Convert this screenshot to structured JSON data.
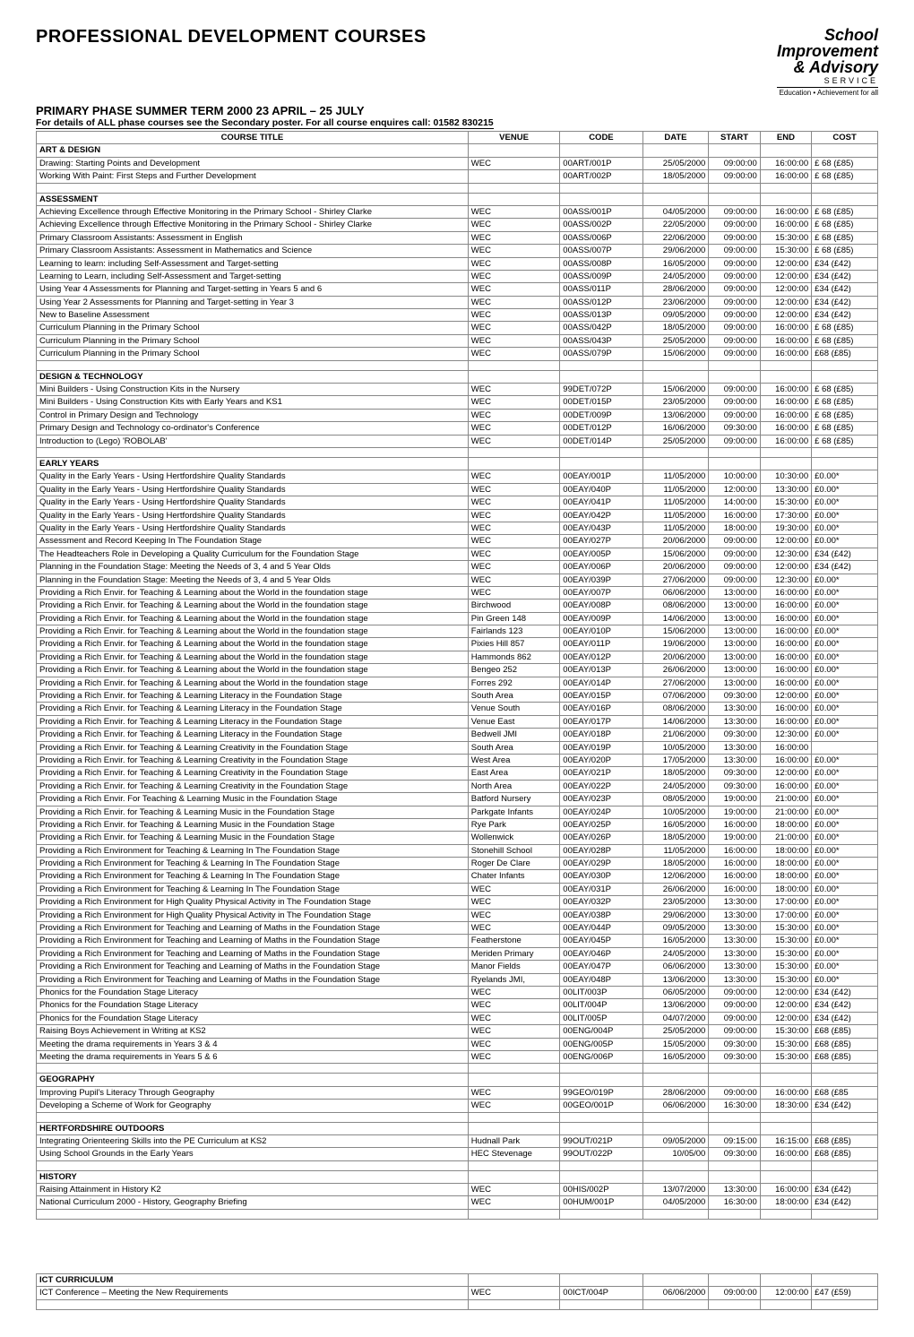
{
  "header": {
    "title": "PROFESSIONAL DEVELOPMENT COURSES",
    "logo": {
      "l1": "School",
      "l2": "Improvement",
      "l3": "& Advisory",
      "l4": "SERVICE",
      "l5": "Education • Achievement for all"
    },
    "subtitle": "PRIMARY PHASE SUMMER TERM 2000  23 APRIL – 25 JULY",
    "subnote": "For details of ALL phase courses see the Secondary poster.  For all course enquires call:  01582 830215"
  },
  "columns": [
    "COURSE TITLE",
    "VENUE",
    "CODE",
    "DATE",
    "START",
    "END",
    "COST"
  ],
  "sections": [
    {
      "name": "ART & DESIGN",
      "rows": [
        [
          "Drawing: Starting Points and Development",
          "WEC",
          "00ART/001P",
          "25/05/2000",
          "09:00:00",
          "16:00:00",
          "£ 68  (£85)"
        ],
        [
          "Working With Paint: First Steps and Further Development",
          "",
          "00ART/002P",
          "18/05/2000",
          "09:00:00",
          "16:00:00",
          "£ 68  (£85)"
        ]
      ]
    },
    {
      "name": "ASSESSMENT",
      "rows": [
        [
          "Achieving Excellence through Effective Monitoring in the Primary School - Shirley Clarke",
          "WEC",
          "00ASS/001P",
          "04/05/2000",
          "09:00:00",
          "16:00:00",
          "£ 68  (£85)"
        ],
        [
          "Achieving Excellence through Effective Monitoring in the Primary School - Shirley Clarke",
          "WEC",
          "00ASS/002P",
          "22/05/2000",
          "09:00:00",
          "16:00:00",
          "£ 68  (£85)"
        ],
        [
          "Primary Classroom Assistants: Assessment in English",
          "WEC",
          "00ASS/006P",
          "22/06/2000",
          "09:00:00",
          "15:30:00",
          "£ 68  (£85)"
        ],
        [
          "Primary Classroom Assistants:  Assessment in Mathematics and Science",
          "WEC",
          "00ASS/007P",
          "29/06/2000",
          "09:00:00",
          "15:30:00",
          "£ 68  (£85)"
        ],
        [
          "Learning to learn: including Self-Assessment and Target-setting",
          "WEC",
          "00ASS/008P",
          "16/05/2000",
          "09:00:00",
          "12:00:00",
          "£34  (£42)"
        ],
        [
          "Learning to Learn, including Self-Assessment and Target-setting",
          "WEC",
          "00ASS/009P",
          "24/05/2000",
          "09:00:00",
          "12:00:00",
          "£34  (£42)"
        ],
        [
          "Using Year 4 Assessments for Planning and Target-setting in Years 5 and 6",
          "WEC",
          "00ASS/011P",
          "28/06/2000",
          "09:00:00",
          "12:00:00",
          "£34  (£42)"
        ],
        [
          "Using Year 2 Assessments for Planning and Target-setting in Year 3",
          "WEC",
          "00ASS/012P",
          "23/06/2000",
          "09:00:00",
          "12:00:00",
          "£34  (£42)"
        ],
        [
          "New to Baseline Assessment",
          "WEC",
          "00ASS/013P",
          "09/05/2000",
          "09:00:00",
          "12:00:00",
          "£34  (£42)"
        ],
        [
          "Curriculum Planning in the Primary School",
          "WEC",
          "00ASS/042P",
          "18/05/2000",
          "09:00:00",
          "16:00:00",
          "£ 68  (£85)"
        ],
        [
          "Curriculum Planning in the Primary School",
          "WEC",
          "00ASS/043P",
          "25/05/2000",
          "09:00:00",
          "16:00:00",
          "£ 68  (£85)"
        ],
        [
          "Curriculum Planning in the Primary School",
          "WEC",
          "00ASS/079P",
          "15/06/2000",
          "09:00:00",
          "16:00:00",
          "£68  (£85)"
        ]
      ]
    },
    {
      "name": "DESIGN & TECHNOLOGY",
      "rows": [
        [
          "Mini Builders - Using Construction Kits in the Nursery",
          "WEC",
          "99DET/072P",
          "15/06/2000",
          "09:00:00",
          "16:00:00",
          "£ 68  (£85)"
        ],
        [
          "Mini Builders - Using Construction Kits with Early Years and KS1",
          "WEC",
          "00DET/015P",
          "23/05/2000",
          "09:00:00",
          "16:00:00",
          "£ 68  (£85)"
        ],
        [
          "Control in Primary Design and Technology",
          "WEC",
          "00DET/009P",
          "13/06/2000",
          "09:00:00",
          "16:00:00",
          "£ 68  (£85)"
        ],
        [
          "Primary Design and Technology co-ordinator's Conference",
          "WEC",
          "00DET/012P",
          "16/06/2000",
          "09:30:00",
          "16:00:00",
          "£ 68  (£85)"
        ],
        [
          "Introduction to (Lego) 'ROBOLAB'",
          "WEC",
          "00DET/014P",
          "25/05/2000",
          "09:00:00",
          "16:00:00",
          "£ 68  (£85)"
        ]
      ]
    },
    {
      "name": "EARLY YEARS",
      "rows": [
        [
          "Quality in the Early Years - Using Hertfordshire Quality Standards",
          "WEC",
          "00EAY/001P",
          "11/05/2000",
          "10:00:00",
          "10:30:00",
          "£0.00*"
        ],
        [
          "Quality in the Early Years - Using Hertfordshire Quality Standards",
          "WEC",
          "00EAY/040P",
          "11/05/2000",
          "12:00:00",
          "13:30:00",
          "£0.00*"
        ],
        [
          "Quality in the Early Years - Using Hertfordshire Quality Standards",
          "WEC",
          "00EAY/041P",
          "11/05/2000",
          "14:00:00",
          "15:30:00",
          "£0.00*"
        ],
        [
          "Quality in the Early Years - Using Hertfordshire Quality Standards",
          "WEC",
          "00EAY/042P",
          "11/05/2000",
          "16:00:00",
          "17:30:00",
          "£0.00*"
        ],
        [
          "Quality in the Early Years - Using Hertfordshire Quality Standards",
          "WEC",
          "00EAY/043P",
          "11/05/2000",
          "18:00:00",
          "19:30:00",
          "£0.00*"
        ],
        [
          "Assessment and Record Keeping In The Foundation Stage",
          "WEC",
          "00EAY/027P",
          "20/06/2000",
          "09:00:00",
          "12:00:00",
          "£0.00*"
        ],
        [
          "The Headteachers Role in Developing a Quality Curriculum for the Foundation Stage",
          "WEC",
          "00EAY/005P",
          "15/06/2000",
          "09:00:00",
          "12:30:00",
          "£34  (£42)"
        ],
        [
          "Planning in the Foundation Stage: Meeting the Needs of 3, 4 and 5 Year Olds",
          "WEC",
          "00EAY/006P",
          "20/06/2000",
          "09:00:00",
          "12:00:00",
          "£34  (£42)"
        ],
        [
          "Planning in the Foundation Stage:  Meeting the Needs of 3, 4 and 5 Year Olds",
          "WEC",
          "00EAY/039P",
          "27/06/2000",
          "09:00:00",
          "12:30:00",
          "£0.00*"
        ],
        [
          "Providing a Rich Envir. for Teaching & Learning about the World in the foundation stage",
          "WEC",
          "00EAY/007P",
          "06/06/2000",
          "13:00:00",
          "16:00:00",
          "£0.00*"
        ],
        [
          "Providing a Rich Envir. for Teaching & Learning about the World in the foundation stage",
          "Birchwood",
          "00EAY/008P",
          "08/06/2000",
          "13:00:00",
          "16:00:00",
          "£0.00*"
        ],
        [
          "Providing a Rich Envir. for Teaching & Learning about the World in the foundation stage",
          "Pin Green 148",
          "00EAY/009P",
          "14/06/2000",
          "13:00:00",
          "16:00:00",
          "£0.00*"
        ],
        [
          "Providing a Rich Envir. for Teaching & Learning about the World in the foundation stage",
          "Fairlands 123",
          "00EAY/010P",
          "15/06/2000",
          "13:00:00",
          "16:00:00",
          "£0.00*"
        ],
        [
          "Providing a Rich Envir. for Teaching & Learning about the World in the foundation stage",
          "Pixies Hill 857",
          "00EAY/011P",
          "19/06/2000",
          "13:00:00",
          "16:00:00",
          "£0.00*"
        ],
        [
          "Providing a Rich Envir. for Teaching & Learning about the World in the foundation stage",
          "Hammonds 862",
          "00EAY/012P",
          "20/06/2000",
          "13:00:00",
          "16:00:00",
          "£0.00*"
        ],
        [
          "Providing a Rich Envir. for Teaching & Learning about the World in the foundation stage",
          "Bengeo 252",
          "00EAY/013P",
          "26/06/2000",
          "13:00:00",
          "16:00:00",
          "£0.00*"
        ],
        [
          "Providing a Rich Envir. for Teaching & Learning about the World in the foundation stage",
          "Forres 292",
          "00EAY/014P",
          "27/06/2000",
          "13:00:00",
          "16:00:00",
          "£0.00*"
        ],
        [
          "Providing a Rich Envir. for Teaching & Learning Literacy in the Foundation Stage",
          "South Area",
          "00EAY/015P",
          "07/06/2000",
          "09:30:00",
          "12:00:00",
          "£0.00*"
        ],
        [
          "Providing a Rich Envir. for Teaching & Learning Literacy in the Foundation Stage",
          "Venue South",
          "00EAY/016P",
          "08/06/2000",
          "13:30:00",
          "16:00:00",
          "£0.00*"
        ],
        [
          "Providing a Rich Envir. for Teaching & Learning Literacy in the Foundation Stage",
          "Venue East",
          "00EAY/017P",
          "14/06/2000",
          "13:30:00",
          "16:00:00",
          "£0.00*"
        ],
        [
          "Providing a Rich Envir. for Teaching & Learning Literacy in the Foundation Stage",
          "Bedwell JMI",
          "00EAY/018P",
          "21/06/2000",
          "09:30:00",
          "12:30:00",
          "£0.00*"
        ],
        [
          "Providing a Rich Envir. for Teaching & Learning Creativity in the Foundation Stage",
          "South Area",
          "00EAY/019P",
          "10/05/2000",
          "13:30:00",
          "16:00:00",
          ""
        ],
        [
          "Providing a Rich Envir. for Teaching & Learning Creativity in the Foundation Stage",
          "West Area",
          "00EAY/020P",
          "17/05/2000",
          "13:30:00",
          "16:00:00",
          "£0.00*"
        ],
        [
          "Providing a Rich Envir. for Teaching & Learning Creativity in the Foundation Stage",
          "East Area",
          "00EAY/021P",
          "18/05/2000",
          "09:30:00",
          "12:00:00",
          "£0.00*"
        ],
        [
          "Providing a Rich Envir. for Teaching & Learning Creativity in the Foundation Stage",
          "North Area",
          "00EAY/022P",
          "24/05/2000",
          "09:30:00",
          "16:00:00",
          "£0.00*"
        ],
        [
          "Providing a Rich Envir. For Teaching & Learning Music in the Foundation Stage",
          "Batford Nursery",
          "00EAY/023P",
          "08/05/2000",
          "19:00:00",
          "21:00:00",
          "£0.00*"
        ],
        [
          "Providing a Rich Envir. for Teaching & Learning Music in the Foundation Stage",
          "Parkgate Infants",
          "00EAY/024P",
          "10/05/2000",
          "19:00:00",
          "21:00:00",
          "£0.00*"
        ],
        [
          "Providing a Rich Envir. for Teaching & Learning Music in the Foundation Stage",
          "Rye Park",
          "00EAY/025P",
          "16/05/2000",
          "16:00:00",
          "18:00:00",
          "£0.00*"
        ],
        [
          "Providing a Rich Envir. for  Teaching & Learning Music in the Foundation Stage",
          "Wollenwick",
          "00EAY/026P",
          "18/05/2000",
          "19:00:00",
          "21:00:00",
          "£0.00*"
        ],
        [
          "Providing a Rich Environment for Teaching & Learning In The Foundation Stage",
          "Stonehill School",
          "00EAY/028P",
          "11/05/2000",
          "16:00:00",
          "18:00:00",
          "£0.00*"
        ],
        [
          "Providing a Rich Environment for Teaching & Learning In The Foundation Stage",
          "Roger De Clare",
          "00EAY/029P",
          "18/05/2000",
          "16:00:00",
          "18:00:00",
          "£0.00*"
        ],
        [
          "Providing a Rich Environment for Teaching & Learning In The Foundation Stage",
          "Chater Infants",
          "00EAY/030P",
          "12/06/2000",
          "16:00:00",
          "18:00:00",
          "£0.00*"
        ],
        [
          "Providing a Rich Environment for Teaching & Learning In The Foundation Stage",
          "WEC",
          "00EAY/031P",
          "26/06/2000",
          "16:00:00",
          "18:00:00",
          "£0.00*"
        ],
        [
          "Providing a Rich Environment for High Quality Physical Activity in The Foundation Stage",
          "WEC",
          "00EAY/032P",
          "23/05/2000",
          "13:30:00",
          "17:00:00",
          "£0.00*"
        ],
        [
          "Providing a Rich Environment for High Quality Physical Activity in The Foundation Stage",
          "WEC",
          "00EAY/038P",
          "29/06/2000",
          "13:30:00",
          "17:00:00",
          "£0.00*"
        ],
        [
          "Providing a Rich Environment for Teaching and Learning of Maths in the Foundation Stage",
          "WEC",
          "00EAY/044P",
          "09/05/2000",
          "13:30:00",
          "15:30:00",
          "£0.00*"
        ],
        [
          "Providing a Rich Environment for Teaching and Learning of Maths in the Foundation Stage",
          "Featherstone",
          "00EAY/045P",
          "16/05/2000",
          "13:30:00",
          "15:30:00",
          "£0.00*"
        ],
        [
          "Providing a Rich Environment for Teaching and Learning of Maths in the Foundation Stage",
          "Meriden Primary",
          "00EAY/046P",
          "24/05/2000",
          "13:30:00",
          "15:30:00",
          "£0.00*"
        ],
        [
          "Providing a Rich Environment for Teaching and Learning of Maths in the Foundation Stage",
          "Manor Fields",
          "00EAY/047P",
          "06/06/2000",
          "13:30:00",
          "15:30:00",
          "£0.00*"
        ],
        [
          "Providing a Rich Environment for Teaching and Learning of Maths in the Foundation Stage",
          "Ryelands JMI,",
          "00EAY/048P",
          "13/06/2000",
          "13:30:00",
          "15:30:00",
          "£0.00*"
        ],
        [
          "Phonics for the Foundation Stage  Literacy",
          "WEC",
          "00LIT/003P",
          "06/05/2000",
          "09:00:00",
          "12:00:00",
          "£34  (£42)"
        ],
        [
          "Phonics for the Foundation Stage Literacy",
          "WEC",
          "00LIT/004P",
          "13/06/2000",
          "09:00:00",
          "12:00:00",
          "£34  (£42)"
        ],
        [
          "Phonics for the Foundation Stage Literacy",
          "WEC",
          "00LIT/005P",
          "04/07/2000",
          "09:00:00",
          "12:00:00",
          "£34  (£42)"
        ],
        [
          "Raising Boys Achievement in Writing at KS2",
          "WEC",
          "00ENG/004P",
          "25/05/2000",
          "09:00:00",
          "15:30:00",
          "£68  (£85)"
        ],
        [
          "Meeting the drama requirements in Years 3 & 4",
          "WEC",
          "00ENG/005P",
          "15/05/2000",
          "09:30:00",
          "15:30:00",
          "£68  (£85)"
        ],
        [
          "Meeting the drama requirements in Years 5 & 6",
          "WEC",
          "00ENG/006P",
          "16/05/2000",
          "09:30:00",
          "15:30:00",
          "£68  (£85)"
        ]
      ]
    },
    {
      "name": "GEOGRAPHY",
      "rows": [
        [
          "Improving Pupil's Literacy Through Geography",
          "WEC",
          "99GEO/019P",
          "28/06/2000",
          "09:00:00",
          "16:00:00",
          "£68  (£85"
        ],
        [
          "Developing a Scheme of Work for Geography",
          "WEC",
          "00GEO/001P",
          "06/06/2000",
          "16:30:00",
          "18:30:00",
          "£34  (£42)"
        ]
      ]
    },
    {
      "name": "HERTFORDSHIRE OUTDOORS",
      "rows": [
        [
          "Integrating Orienteering Skills into the PE Curriculum at KS2",
          "Hudnall Park",
          "99OUT/021P",
          "09/05/2000",
          "09:15:00",
          "16:15:00",
          "£68  (£85)"
        ],
        [
          "Using School Grounds in the Early Years",
          "HEC Stevenage",
          "99OUT/022P",
          "10/05/00",
          "09:30:00",
          "16:00:00",
          "£68  (£85)"
        ]
      ]
    },
    {
      "name": "HISTORY",
      "rows": [
        [
          "Raising Attainment in History K2",
          "WEC",
          "00HIS/002P",
          "13/07/2000",
          "13:30:00",
          "16:00:00",
          "£34  (£42)"
        ],
        [
          "National Curriculum 2000 - History, Geography Briefing",
          "WEC",
          "00HUM/001P",
          "04/05/2000",
          "16:30:00",
          "18:00:00",
          "£34  (£42)"
        ]
      ]
    }
  ],
  "sections2": [
    {
      "name": "ICT CURRICULUM",
      "rows": [
        [
          "ICT Conference – Meeting the New Requirements",
          "WEC",
          "00ICT/004P",
          "06/06/2000",
          "09:00:00",
          "12:00:00",
          "£47  (£59)"
        ]
      ]
    }
  ],
  "style": {
    "background": "#ffffff",
    "text_color": "#000000",
    "border_color": "#888888",
    "font_family": "Arial",
    "title_fontsize": 20,
    "subtitle_fontsize": 13,
    "body_fontsize": 9.5
  }
}
